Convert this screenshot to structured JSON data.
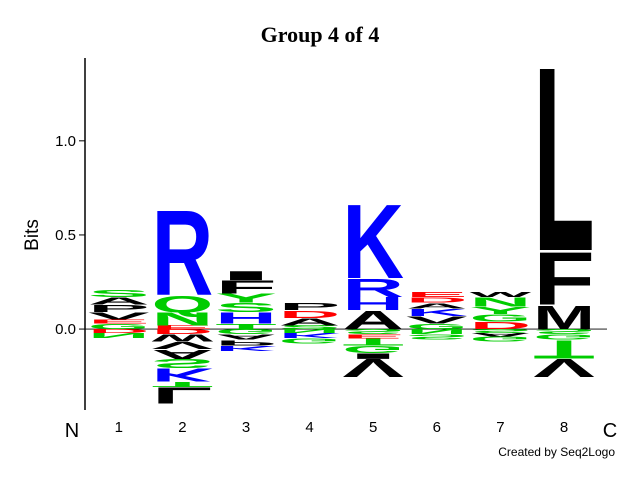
{
  "chart_data": {
    "type": "logo",
    "title": "Group 4 of 4",
    "y_label": "Bits",
    "n_label": "N",
    "c_label": "C",
    "annotation": "Created by Seq2Logo",
    "categories": [
      "1",
      "2",
      "3",
      "4",
      "5",
      "6",
      "7",
      "8"
    ],
    "letter_colors": {
      "A": "#000000",
      "V": "#000000",
      "L": "#000000",
      "I": "#000000",
      "F": "#000000",
      "M": "#000000",
      "W": "#000000",
      "P": "#000000",
      "K": "#0000ff",
      "R": "#0000ff",
      "H": "#0000ff",
      "D": "#ff0000",
      "E": "#ff0000",
      "N": "#00cc00",
      "Q": "#00cc00",
      "S": "#00cc00",
      "T": "#00cc00",
      "G": "#00cc00",
      "Y": "#00cc00",
      "C": "#00cc00"
    },
    "ylim": [
      -0.43,
      1.44
    ],
    "yticks": [
      {
        "value": 0,
        "label": "0.0"
      },
      0.5,
      {
        "value": 1,
        "label": "1.0"
      }
    ],
    "stacks": [
      {
        "above": [
          {
            "letter": "G",
            "height": 0.03
          },
          {
            "letter": "E",
            "height": 0.02
          },
          {
            "letter": "V",
            "height": 0.04
          },
          {
            "letter": "P",
            "height": 0.04
          },
          {
            "letter": "A",
            "height": 0.04
          },
          {
            "letter": "S",
            "height": 0.04
          }
        ],
        "below": [
          {
            "letter": "D",
            "height": -0.02
          },
          {
            "letter": "N",
            "height": -0.03
          }
        ]
      },
      {
        "above": [
          {
            "letter": "E",
            "height": 0.02
          },
          {
            "letter": "N",
            "height": 0.07
          },
          {
            "letter": "Q",
            "height": 0.09
          },
          {
            "letter": "R",
            "height": 0.47
          }
        ],
        "below": [
          {
            "letter": "D",
            "height": -0.03
          },
          {
            "letter": "W",
            "height": -0.04
          },
          {
            "letter": "V",
            "height": -0.04
          },
          {
            "letter": "A",
            "height": -0.05
          },
          {
            "letter": "S",
            "height": -0.05
          },
          {
            "letter": "K",
            "height": -0.07
          },
          {
            "letter": "T",
            "height": -0.03
          },
          {
            "letter": "L",
            "height": -0.09
          }
        ]
      },
      {
        "above": [
          {
            "letter": "T",
            "height": 0.03
          },
          {
            "letter": "H",
            "height": 0.06
          },
          {
            "letter": "S",
            "height": 0.05
          },
          {
            "letter": "Y",
            "height": 0.05
          },
          {
            "letter": "F",
            "height": 0.07
          },
          {
            "letter": "I",
            "height": 0.05
          }
        ],
        "below": [
          {
            "letter": "G",
            "height": -0.03
          },
          {
            "letter": "A",
            "height": -0.03
          },
          {
            "letter": "P",
            "height": -0.03
          },
          {
            "letter": "K",
            "height": -0.03
          }
        ]
      },
      {
        "above": [
          {
            "letter": "S",
            "height": 0.02
          },
          {
            "letter": "A",
            "height": 0.04
          },
          {
            "letter": "D",
            "height": 0.04
          },
          {
            "letter": "P",
            "height": 0.04
          }
        ],
        "below": [
          {
            "letter": "N",
            "height": -0.02
          },
          {
            "letter": "K",
            "height": -0.03
          },
          {
            "letter": "G",
            "height": -0.03
          }
        ]
      },
      {
        "above": [
          {
            "letter": "A",
            "height": 0.1
          },
          {
            "letter": "H",
            "height": 0.07
          },
          {
            "letter": "R",
            "height": 0.1
          },
          {
            "letter": "K",
            "height": 0.41
          }
        ],
        "below": [
          {
            "letter": "S",
            "height": -0.03
          },
          {
            "letter": "E",
            "height": -0.02
          },
          {
            "letter": "T",
            "height": -0.04
          },
          {
            "letter": "G",
            "height": -0.04
          },
          {
            "letter": "I",
            "height": -0.03
          },
          {
            "letter": "V",
            "height": -0.1
          }
        ]
      },
      {
        "above": [
          {
            "letter": "G",
            "height": 0.03
          },
          {
            "letter": "V",
            "height": 0.04
          },
          {
            "letter": "K",
            "height": 0.04
          },
          {
            "letter": "A",
            "height": 0.03
          },
          {
            "letter": "D",
            "height": 0.03
          },
          {
            "letter": "E",
            "height": 0.03
          }
        ],
        "below": [
          {
            "letter": "N",
            "height": -0.03
          },
          {
            "letter": "S",
            "height": -0.03
          }
        ]
      },
      {
        "above": [
          {
            "letter": "D",
            "height": 0.04
          },
          {
            "letter": "G",
            "height": 0.04
          },
          {
            "letter": "Y",
            "height": 0.04
          },
          {
            "letter": "N",
            "height": 0.05
          },
          {
            "letter": "W",
            "height": 0.03
          }
        ],
        "below": [
          {
            "letter": "S",
            "height": -0.02
          },
          {
            "letter": "A",
            "height": -0.02
          },
          {
            "letter": "G",
            "height": -0.03
          }
        ]
      },
      {
        "above": [
          {
            "letter": "M",
            "height": 0.13
          },
          {
            "letter": "F",
            "height": 0.29
          },
          {
            "letter": "L",
            "height": 1.02
          }
        ],
        "below": [
          {
            "letter": "S",
            "height": -0.03
          },
          {
            "letter": "G",
            "height": -0.03
          },
          {
            "letter": "T",
            "height": -0.1
          },
          {
            "letter": "V",
            "height": -0.1
          }
        ]
      }
    ]
  }
}
